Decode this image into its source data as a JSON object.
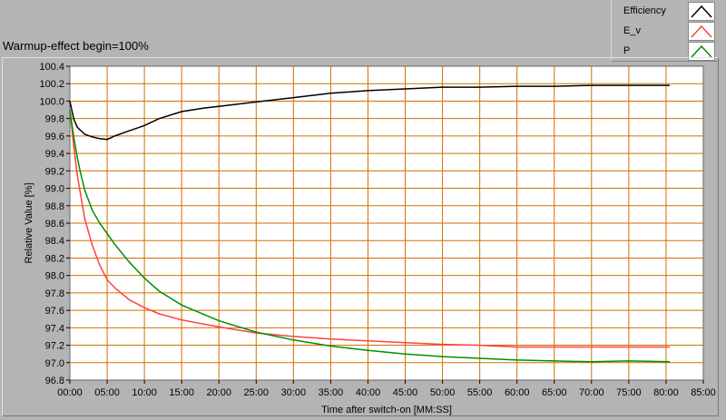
{
  "chart_data": {
    "type": "line",
    "title": "Warmup-effect begin=100%",
    "xlabel": "Time after switch-on [MM:SS]",
    "ylabel": "Relative Value [%]",
    "xlim": [
      0,
      85
    ],
    "ylim": [
      96.8,
      100.4
    ],
    "x_ticks": [
      "00:00",
      "05:00",
      "10:00",
      "15:00",
      "20:00",
      "25:00",
      "30:00",
      "35:00",
      "40:00",
      "45:00",
      "50:00",
      "55:00",
      "60:00",
      "65:00",
      "70:00",
      "75:00",
      "80:00",
      "85:00"
    ],
    "y_ticks": [
      "96.8",
      "97.0",
      "97.2",
      "97.4",
      "97.6",
      "97.8",
      "98.0",
      "98.2",
      "98.4",
      "98.6",
      "98.8",
      "99.0",
      "99.2",
      "99.4",
      "99.6",
      "99.8",
      "100.0",
      "100.2",
      "100.4"
    ],
    "grid": true,
    "legend_position": "top-right",
    "series": [
      {
        "name": "Efficiency",
        "color": "#000000",
        "x": [
          0,
          0.5,
          1,
          2,
          3,
          4,
          5,
          6,
          8,
          10,
          12,
          15,
          18,
          20,
          25,
          30,
          35,
          40,
          45,
          50,
          55,
          60,
          65,
          70,
          75,
          80.5
        ],
        "y": [
          100.0,
          99.8,
          99.7,
          99.62,
          99.59,
          99.57,
          99.56,
          99.6,
          99.66,
          99.72,
          99.8,
          99.88,
          99.92,
          99.94,
          99.99,
          100.04,
          100.09,
          100.12,
          100.14,
          100.16,
          100.16,
          100.17,
          100.17,
          100.18,
          100.18,
          100.18
        ]
      },
      {
        "name": "E_v",
        "color": "#ff4040",
        "x": [
          0,
          0.5,
          1,
          1.5,
          2,
          3,
          4,
          5,
          6,
          8,
          10,
          12,
          15,
          20,
          25,
          30,
          35,
          40,
          45,
          50,
          55,
          60,
          65,
          70,
          75,
          80.5
        ],
        "y": [
          99.9,
          99.5,
          99.15,
          98.9,
          98.65,
          98.35,
          98.12,
          97.95,
          97.86,
          97.72,
          97.63,
          97.56,
          97.49,
          97.41,
          97.34,
          97.3,
          97.27,
          97.25,
          97.23,
          97.21,
          97.2,
          97.18,
          97.18,
          97.18,
          97.18,
          97.18
        ]
      },
      {
        "name": "P",
        "color": "#009000",
        "x": [
          0,
          0.5,
          1,
          1.5,
          2,
          3,
          4,
          5,
          6,
          8,
          10,
          12,
          15,
          20,
          25,
          30,
          35,
          40,
          45,
          50,
          55,
          60,
          65,
          70,
          75,
          80.5
        ],
        "y": [
          99.9,
          99.6,
          99.35,
          99.15,
          98.98,
          98.75,
          98.6,
          98.48,
          98.36,
          98.15,
          97.97,
          97.82,
          97.66,
          97.48,
          97.35,
          97.26,
          97.19,
          97.14,
          97.1,
          97.07,
          97.05,
          97.03,
          97.02,
          97.01,
          97.02,
          97.01
        ]
      }
    ]
  }
}
